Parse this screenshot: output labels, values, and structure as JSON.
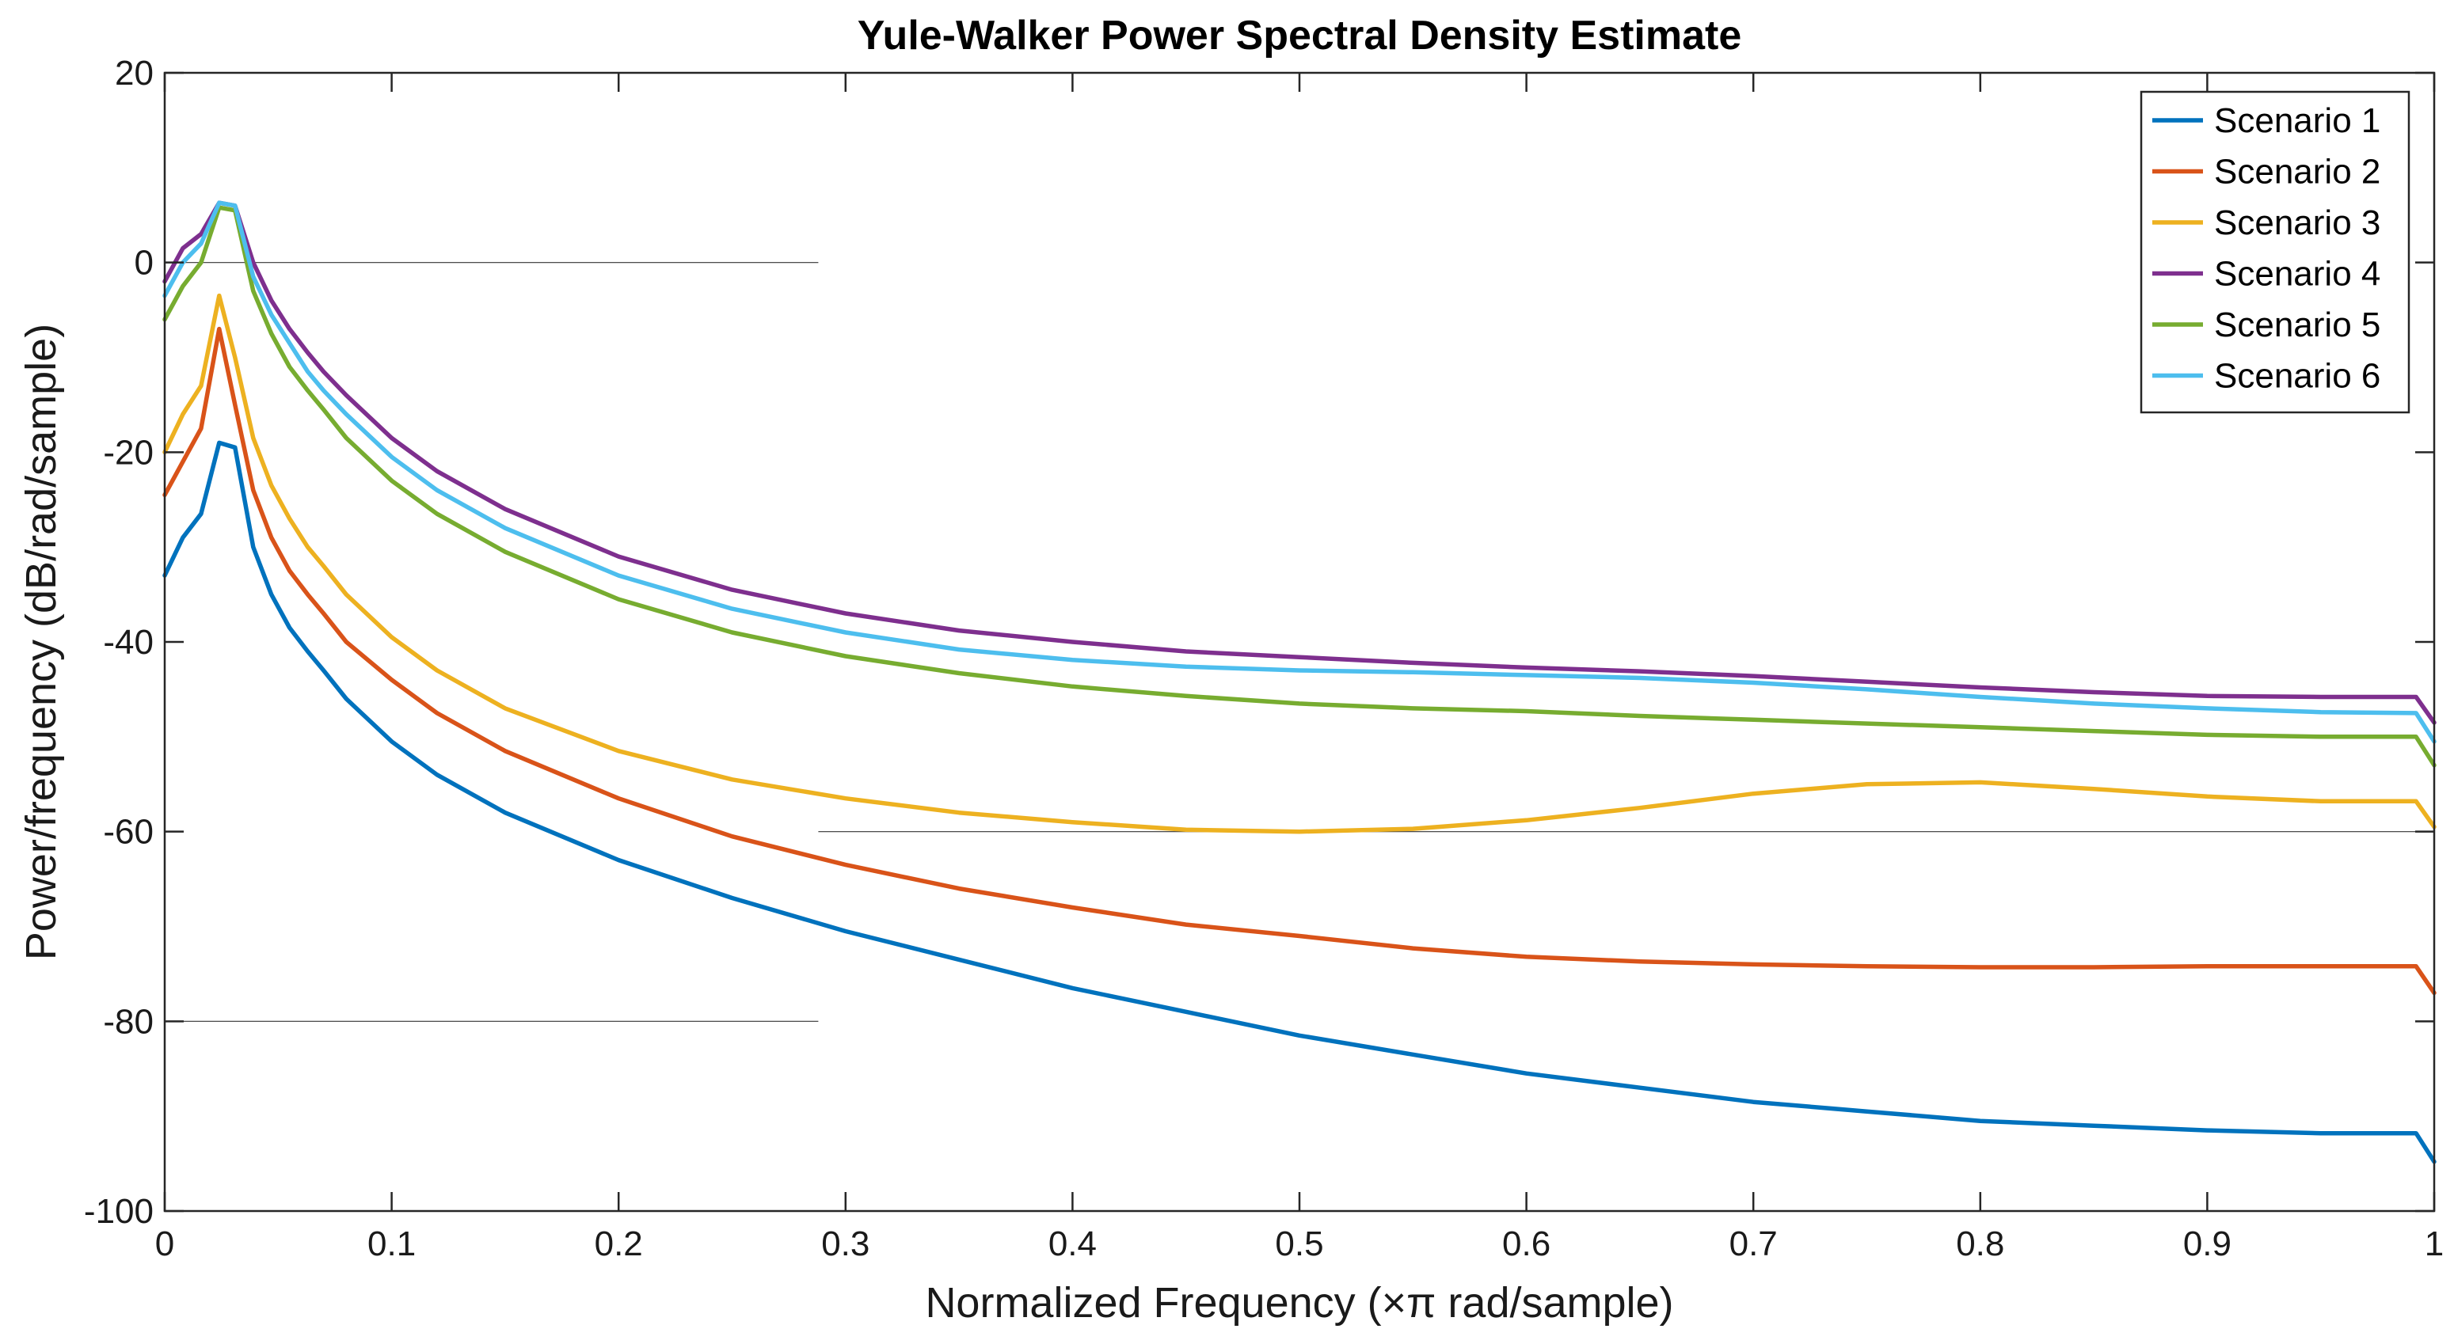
{
  "chart_data": {
    "type": "line",
    "title": "Yule-Walker Power Spectral Density Estimate",
    "xlabel": "Normalized Frequency  (×π rad/sample)",
    "ylabel": "Power/frequency (dB/rad/sample)",
    "xlim": [
      0,
      1
    ],
    "ylim": [
      -100,
      20
    ],
    "xticks": [
      0,
      0.1,
      0.2,
      0.3,
      0.4,
      0.5,
      0.6,
      0.7,
      0.8,
      0.9,
      1
    ],
    "xtick_labels": [
      "0",
      "0.1",
      "0.2",
      "0.3",
      "0.4",
      "0.5",
      "0.6",
      "0.7",
      "0.8",
      "0.9",
      "1"
    ],
    "yticks": [
      20,
      0,
      -20,
      -40,
      -60,
      -80,
      -100
    ],
    "ytick_labels": [
      "20",
      "0",
      "-20",
      "-40",
      "-60",
      "-80",
      "-100"
    ],
    "legend_position": "top-right",
    "reference_lines": [
      {
        "y": 0,
        "x": [
          0,
          0.288
        ]
      },
      {
        "y": -80,
        "x": [
          0,
          0.288
        ]
      },
      {
        "y": -60,
        "x": [
          0.288,
          1
        ]
      }
    ],
    "series": [
      {
        "name": "Scenario 1",
        "color": "#0072BD",
        "x": [
          0,
          0.008,
          0.016,
          0.024,
          0.031,
          0.039,
          0.047,
          0.055,
          0.063,
          0.07,
          0.08,
          0.1,
          0.12,
          0.15,
          0.2,
          0.25,
          0.3,
          0.35,
          0.4,
          0.45,
          0.5,
          0.55,
          0.6,
          0.65,
          0.7,
          0.75,
          0.8,
          0.85,
          0.9,
          0.95,
          0.992,
          1
        ],
        "values": [
          -33,
          -29,
          -26.5,
          -19,
          -19.5,
          -30,
          -35,
          -38.5,
          -41,
          -43,
          -46,
          -50.5,
          -54,
          -58,
          -63,
          -67,
          -70.5,
          -73.5,
          -76.5,
          -79,
          -81.5,
          -83.5,
          -85.5,
          -87,
          -88.5,
          -89.5,
          -90.5,
          -91,
          -91.5,
          -91.8,
          -91.8,
          -94.8
        ]
      },
      {
        "name": "Scenario 2",
        "color": "#D95319",
        "x": [
          0,
          0.008,
          0.016,
          0.024,
          0.031,
          0.039,
          0.047,
          0.055,
          0.063,
          0.07,
          0.08,
          0.1,
          0.12,
          0.15,
          0.2,
          0.25,
          0.3,
          0.35,
          0.4,
          0.45,
          0.5,
          0.55,
          0.6,
          0.65,
          0.7,
          0.75,
          0.8,
          0.85,
          0.9,
          0.95,
          0.992,
          1
        ],
        "values": [
          -24.5,
          -21,
          -17.5,
          -7,
          -15,
          -24,
          -29,
          -32.5,
          -35,
          -37,
          -40,
          -44,
          -47.5,
          -51.5,
          -56.5,
          -60.5,
          -63.5,
          -66,
          -68,
          -69.8,
          -71,
          -72.3,
          -73.2,
          -73.7,
          -74,
          -74.2,
          -74.3,
          -74.3,
          -74.2,
          -74.2,
          -74.2,
          -77
        ]
      },
      {
        "name": "Scenario 3",
        "color": "#EDB120",
        "x": [
          0,
          0.008,
          0.016,
          0.024,
          0.031,
          0.039,
          0.047,
          0.055,
          0.063,
          0.07,
          0.08,
          0.1,
          0.12,
          0.15,
          0.2,
          0.25,
          0.3,
          0.35,
          0.4,
          0.45,
          0.5,
          0.55,
          0.6,
          0.65,
          0.7,
          0.75,
          0.8,
          0.85,
          0.9,
          0.95,
          0.992,
          1
        ],
        "values": [
          -20,
          -16,
          -13,
          -3.5,
          -10,
          -18.5,
          -23.5,
          -27,
          -30,
          -32,
          -35,
          -39.5,
          -43,
          -47,
          -51.5,
          -54.5,
          -56.5,
          -58,
          -59,
          -59.8,
          -60,
          -59.7,
          -58.8,
          -57.5,
          -56,
          -55,
          -54.8,
          -55.5,
          -56.3,
          -56.8,
          -56.8,
          -59.5
        ]
      },
      {
        "name": "Scenario 4",
        "color": "#7E2F8E",
        "x": [
          0,
          0.008,
          0.016,
          0.024,
          0.031,
          0.039,
          0.047,
          0.055,
          0.063,
          0.07,
          0.08,
          0.1,
          0.12,
          0.15,
          0.2,
          0.25,
          0.3,
          0.35,
          0.4,
          0.45,
          0.5,
          0.55,
          0.6,
          0.65,
          0.7,
          0.75,
          0.8,
          0.85,
          0.9,
          0.95,
          0.992,
          1
        ],
        "values": [
          -2,
          1.5,
          3,
          6.3,
          6,
          0,
          -4,
          -7,
          -9.5,
          -11.5,
          -14,
          -18.5,
          -22,
          -26,
          -31,
          -34.5,
          -37,
          -38.8,
          -40,
          -41,
          -41.6,
          -42.2,
          -42.7,
          -43.1,
          -43.6,
          -44.2,
          -44.8,
          -45.3,
          -45.7,
          -45.8,
          -45.8,
          -48.5
        ]
      },
      {
        "name": "Scenario 5",
        "color": "#77AC30",
        "x": [
          0,
          0.008,
          0.016,
          0.024,
          0.031,
          0.039,
          0.047,
          0.055,
          0.063,
          0.07,
          0.08,
          0.1,
          0.12,
          0.15,
          0.2,
          0.25,
          0.3,
          0.35,
          0.4,
          0.45,
          0.5,
          0.55,
          0.6,
          0.65,
          0.7,
          0.75,
          0.8,
          0.85,
          0.9,
          0.95,
          0.992,
          1
        ],
        "values": [
          -6,
          -2.5,
          0,
          5.8,
          5.5,
          -3,
          -7.5,
          -11,
          -13.5,
          -15.5,
          -18.5,
          -23,
          -26.5,
          -30.5,
          -35.5,
          -39,
          -41.5,
          -43.3,
          -44.7,
          -45.7,
          -46.5,
          -47,
          -47.3,
          -47.8,
          -48.2,
          -48.6,
          -49,
          -49.4,
          -49.8,
          -50,
          -50,
          -53
        ]
      },
      {
        "name": "Scenario 6",
        "color": "#4DBEEE",
        "x": [
          0,
          0.008,
          0.016,
          0.024,
          0.031,
          0.039,
          0.047,
          0.055,
          0.063,
          0.07,
          0.08,
          0.1,
          0.12,
          0.15,
          0.2,
          0.25,
          0.3,
          0.35,
          0.4,
          0.45,
          0.5,
          0.55,
          0.6,
          0.65,
          0.7,
          0.75,
          0.8,
          0.85,
          0.9,
          0.95,
          0.992,
          1
        ],
        "values": [
          -3.5,
          0,
          2,
          6.3,
          6,
          -1.5,
          -5.5,
          -8.5,
          -11.5,
          -13.5,
          -16,
          -20.5,
          -24,
          -28,
          -33,
          -36.5,
          -39,
          -40.8,
          -41.9,
          -42.6,
          -43,
          -43.2,
          -43.5,
          -43.8,
          -44.3,
          -45,
          -45.8,
          -46.5,
          -47,
          -47.4,
          -47.5,
          -50.5
        ]
      }
    ]
  }
}
